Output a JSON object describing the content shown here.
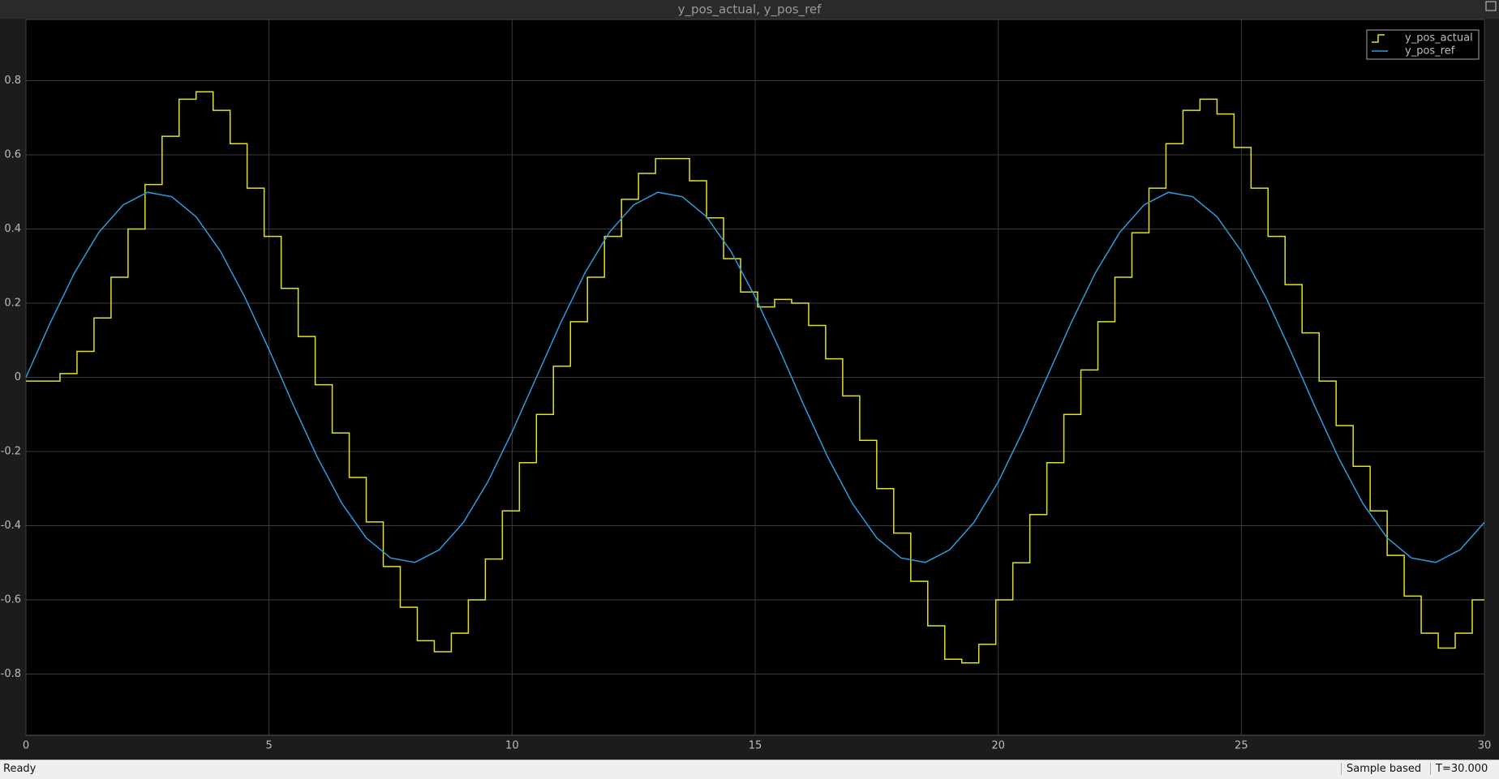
{
  "window": {
    "status": "Ready",
    "mode": "Sample based",
    "time": "T=30.000"
  },
  "chart_data": {
    "type": "line",
    "title": "y_pos_actual, y_pos_ref",
    "xlim": [
      0,
      30
    ],
    "xticks": [
      0,
      5,
      10,
      15,
      20,
      25,
      30
    ],
    "ylim": [
      -0.965,
      0.965
    ],
    "yticks": [
      -0.8,
      -0.6,
      -0.4,
      -0.2,
      0,
      0.2,
      0.4,
      0.6,
      0.8
    ],
    "grid": true,
    "legend": "upper right",
    "series": [
      {
        "name": "y_pos_actual",
        "color": "#e2e222",
        "drawstyle": "steps-post",
        "x": [
          0,
          0.35,
          0.7,
          1.05,
          1.4,
          1.75,
          2.1,
          2.45,
          2.8,
          3.15,
          3.5,
          3.85,
          4.2,
          4.55,
          4.9,
          5.25,
          5.6,
          5.95,
          6.3,
          6.65,
          7,
          7.35,
          7.7,
          8.05,
          8.4,
          8.75,
          9.1,
          9.45,
          9.8,
          10.15,
          10.5,
          10.85,
          11.2,
          11.55,
          11.9,
          12.25,
          12.6,
          12.95,
          13.3,
          13.65,
          14,
          14.35,
          14.7,
          15.05,
          15.4,
          15.75,
          16.1,
          16.45,
          16.8,
          17.15,
          17.5,
          17.85,
          18.2,
          18.55,
          18.9,
          19.25,
          19.6,
          19.95,
          20.3,
          20.65,
          21,
          21.35,
          21.7,
          22.05,
          22.4,
          22.75,
          23.1,
          23.45,
          23.8,
          24.15,
          24.5,
          24.85,
          25.2,
          25.55,
          25.9,
          26.25,
          26.6,
          26.95,
          27.3,
          27.65,
          28,
          28.35,
          28.7,
          29.05,
          29.4,
          29.75
        ],
        "values": [
          -0.01,
          -0.01,
          0.01,
          0.07,
          0.16,
          0.27,
          0.4,
          0.52,
          0.65,
          0.75,
          0.77,
          0.72,
          0.63,
          0.51,
          0.38,
          0.24,
          0.11,
          -0.02,
          -0.15,
          -0.27,
          -0.39,
          -0.51,
          -0.62,
          -0.71,
          -0.74,
          -0.69,
          -0.6,
          -0.49,
          -0.36,
          -0.23,
          -0.1,
          0.03,
          0.15,
          0.27,
          0.38,
          0.48,
          0.55,
          0.59,
          0.59,
          0.53,
          0.43,
          0.32,
          0.23,
          0.19,
          0.21,
          0.2,
          0.14,
          0.05,
          -0.05,
          -0.17,
          -0.3,
          -0.42,
          -0.55,
          -0.67,
          -0.76,
          -0.77,
          -0.72,
          -0.6,
          -0.5,
          -0.37,
          -0.23,
          -0.1,
          0.02,
          0.15,
          0.27,
          0.39,
          0.51,
          0.63,
          0.72,
          0.75,
          0.71,
          0.62,
          0.51,
          0.38,
          0.25,
          0.12,
          -0.01,
          -0.13,
          -0.24,
          -0.36,
          -0.48,
          -0.59,
          -0.69,
          -0.73,
          -0.69,
          -0.6
        ]
      },
      {
        "name": "y_pos_ref",
        "color": "#2d9be0",
        "x": [
          0,
          0.5,
          1,
          1.5,
          2,
          2.5,
          3,
          3.5,
          4,
          4.5,
          5,
          5.5,
          6,
          6.5,
          7,
          7.5,
          8,
          8.5,
          9,
          9.5,
          10,
          10.5,
          11,
          11.5,
          12,
          12.5,
          13,
          13.5,
          14,
          14.5,
          15,
          15.5,
          16,
          16.5,
          17,
          17.5,
          18,
          18.5,
          19,
          19.5,
          20,
          20.5,
          21,
          21.5,
          22,
          22.5,
          23,
          23.5,
          24,
          24.5,
          25,
          25.5,
          26,
          26.5,
          27,
          27.5,
          28,
          28.5,
          29,
          29.5,
          30
        ],
        "values": [
          0,
          0.147,
          0.282,
          0.391,
          0.465,
          0.499,
          0.487,
          0.433,
          0.34,
          0.217,
          0.075,
          -0.075,
          -0.217,
          -0.34,
          -0.433,
          -0.487,
          -0.499,
          -0.465,
          -0.391,
          -0.282,
          -0.147,
          0,
          0.147,
          0.282,
          0.391,
          0.465,
          0.499,
          0.487,
          0.433,
          0.34,
          0.217,
          0.075,
          -0.075,
          -0.217,
          -0.34,
          -0.433,
          -0.487,
          -0.499,
          -0.465,
          -0.391,
          -0.282,
          -0.147,
          0,
          0.147,
          0.282,
          0.391,
          0.465,
          0.499,
          0.487,
          0.433,
          0.34,
          0.217,
          0.075,
          -0.075,
          -0.217,
          -0.34,
          -0.433,
          -0.487,
          -0.499,
          -0.465,
          -0.391
        ]
      }
    ]
  }
}
